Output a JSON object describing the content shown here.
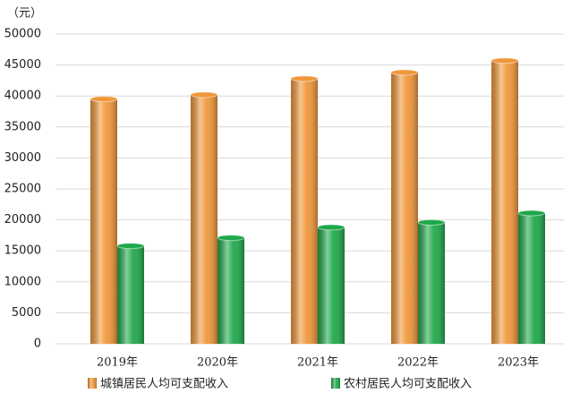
{
  "chart_data": {
    "type": "bar",
    "y_label": "（元）",
    "categories": [
      "2019年",
      "2020年",
      "2021年",
      "2022年",
      "2023年"
    ],
    "series": [
      {
        "name": "城镇居民人均可支配收入",
        "color": "#f0973a",
        "values": [
          39500,
          40200,
          42800,
          43800,
          45700
        ]
      },
      {
        "name": "农村居民人均可支配收入",
        "color": "#1fa84a",
        "values": [
          15800,
          17100,
          18800,
          19600,
          21100
        ]
      }
    ],
    "ylim": [
      0,
      50000
    ],
    "yticks": [
      0,
      5000,
      10000,
      15000,
      20000,
      25000,
      30000,
      35000,
      40000,
      45000,
      50000
    ],
    "grid": true
  }
}
